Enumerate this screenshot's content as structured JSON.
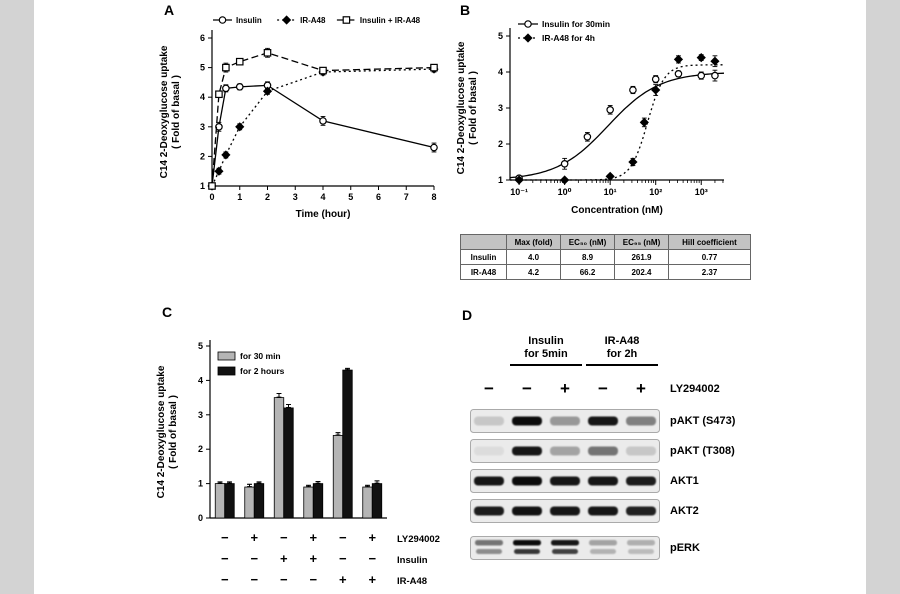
{
  "figure": {
    "panel_labels": [
      "A",
      "B",
      "C",
      "D"
    ]
  },
  "colors": {
    "gutter": "#d3d3d3",
    "bar_gray": "#b5b5b5",
    "bar_black": "#111111",
    "table_header_bg": "#c3c3c3"
  },
  "chart_data": [
    {
      "id": "A",
      "type": "line",
      "xlabel": "Time (hour)",
      "ylabel": "C14 2-Deoxyglucose uptake",
      "ylabel2": "( Fold of basal )",
      "xlim": [
        0,
        8
      ],
      "ylim": [
        1,
        6
      ],
      "xticks": [
        0,
        1,
        2,
        3,
        4,
        5,
        6,
        7,
        8
      ],
      "yticks": [
        1,
        2,
        3,
        4,
        5,
        6
      ],
      "legend_position": "top",
      "x": [
        0,
        0.25,
        0.5,
        1,
        2,
        4,
        8
      ],
      "series": [
        {
          "name": "Insulin",
          "marker": "circle-open",
          "line": "solid",
          "values": [
            1.0,
            3.0,
            4.3,
            4.35,
            4.4,
            3.2,
            2.3
          ],
          "errors": [
            0.05,
            0.15,
            0.12,
            0.1,
            0.12,
            0.15,
            0.15
          ]
        },
        {
          "name": "IR-A48",
          "marker": "diamond-filled",
          "line": "dotted",
          "values": [
            1.0,
            1.5,
            2.05,
            3.0,
            4.2,
            4.85,
            4.95
          ],
          "errors": [
            0.05,
            0.1,
            0.1,
            0.1,
            0.1,
            0.1,
            0.1
          ]
        },
        {
          "name": "Insulin + IR-A48",
          "marker": "square-open",
          "line": "dashed",
          "values": [
            1.0,
            4.1,
            5.0,
            5.2,
            5.5,
            4.9,
            5.0
          ],
          "errors": [
            0.05,
            0.1,
            0.15,
            0.1,
            0.15,
            0.1,
            0.1
          ]
        }
      ]
    },
    {
      "id": "B",
      "type": "line-logx",
      "xlabel": "Concentration (nM)",
      "ylabel": "C14 2-Deoxyglucose uptake",
      "ylabel2": "( Fold of basal )",
      "ylim": [
        1,
        5
      ],
      "yticks": [
        1,
        2,
        3,
        4,
        5
      ],
      "xticks": [
        {
          "log": -1,
          "label": "10⁻¹"
        },
        {
          "log": 0,
          "label": "10⁰"
        },
        {
          "log": 1,
          "label": "10¹"
        },
        {
          "log": 2,
          "label": "10²"
        },
        {
          "log": 3,
          "label": "10³"
        }
      ],
      "series": [
        {
          "name": "Insulin for 30min",
          "marker": "circle-open",
          "line": "solid",
          "max": 4.0,
          "ec50": 8.9,
          "hill": 0.77,
          "x": [
            0.1,
            1,
            3.16,
            10,
            31.6,
            100,
            316,
            1000,
            2000
          ],
          "values": [
            1.05,
            1.45,
            2.2,
            2.95,
            3.5,
            3.8,
            3.95,
            3.9,
            3.9
          ],
          "errors": [
            0.06,
            0.15,
            0.12,
            0.12,
            0.1,
            0.1,
            0.08,
            0.1,
            0.15
          ]
        },
        {
          "name": "IR-A48 for 4h",
          "marker": "diamond-filled",
          "line": "dotted",
          "max": 4.2,
          "ec50": 66.2,
          "hill": 2.37,
          "x": [
            0.1,
            1,
            10,
            31.6,
            56.2,
            100,
            316,
            1000,
            2000
          ],
          "values": [
            1.0,
            1.0,
            1.1,
            1.5,
            2.6,
            3.5,
            4.35,
            4.4,
            4.3
          ],
          "errors": [
            0.04,
            0.04,
            0.05,
            0.1,
            0.12,
            0.15,
            0.1,
            0.08,
            0.15
          ]
        }
      ]
    },
    {
      "id": "C",
      "type": "bar",
      "ylabel": "C14 2-Deoxyglucose uptake",
      "ylabel2": "( Fold of basal )",
      "ylim": [
        0,
        5
      ],
      "yticks": [
        0,
        1,
        2,
        3,
        4,
        5
      ],
      "legend": [
        {
          "label": "for 30 min",
          "color": "#b5b5b5"
        },
        {
          "label": "for 2 hours",
          "color": "#111111"
        }
      ],
      "groups": [
        {
          "values": [
            1.0,
            1.0
          ],
          "errors": [
            0.05,
            0.05
          ]
        },
        {
          "values": [
            0.9,
            1.0
          ],
          "errors": [
            0.08,
            0.05
          ]
        },
        {
          "values": [
            3.5,
            3.2
          ],
          "errors": [
            0.12,
            0.1
          ]
        },
        {
          "values": [
            0.9,
            1.0
          ],
          "errors": [
            0.05,
            0.06
          ]
        },
        {
          "values": [
            2.4,
            4.3
          ],
          "errors": [
            0.08,
            0.05
          ]
        },
        {
          "values": [
            0.9,
            1.0
          ],
          "errors": [
            0.05,
            0.08
          ]
        }
      ],
      "condition_rows": [
        {
          "label": "LY294002",
          "signs": [
            "−",
            "+",
            "−",
            "+",
            "−",
            "+"
          ]
        },
        {
          "label": "Insulin",
          "signs": [
            "−",
            "−",
            "+",
            "+",
            "−",
            "−"
          ]
        },
        {
          "label": "IR-A48",
          "signs": [
            "−",
            "−",
            "−",
            "−",
            "+",
            "+"
          ]
        }
      ]
    }
  ],
  "table_b": {
    "headers": [
      "",
      "Max (fold)",
      "EC₅₀ (nM)",
      "EC₉₅ (nM)",
      "Hill coefficient"
    ],
    "rows": [
      {
        "name": "Insulin",
        "values": [
          "4.0",
          "8.9",
          "261.9",
          "0.77"
        ]
      },
      {
        "name": "IR-A48",
        "values": [
          "4.2",
          "66.2",
          "202.4",
          "2.37"
        ]
      }
    ]
  },
  "panel_d": {
    "group_labels": [
      {
        "line1": "Insulin",
        "line2": "for 5min"
      },
      {
        "line1": "IR-A48",
        "line2": "for 2h"
      }
    ],
    "ly_row": {
      "label": "LY294002",
      "signs": [
        "−",
        "−",
        "+",
        "−",
        "+"
      ]
    },
    "blots": [
      {
        "label": "pAKT (S473)",
        "bands": [
          0.15,
          0.95,
          0.35,
          0.9,
          0.45
        ]
      },
      {
        "label": "pAKT (T308)",
        "bands": [
          0.06,
          0.9,
          0.3,
          0.5,
          0.15
        ]
      },
      {
        "label": "AKT1",
        "bands": [
          0.9,
          0.95,
          0.9,
          0.9,
          0.88
        ]
      },
      {
        "label": "AKT2",
        "bands": [
          0.88,
          0.92,
          0.9,
          0.9,
          0.86
        ]
      },
      {
        "label": "pERK",
        "bands": [
          0.5,
          0.95,
          0.9,
          0.3,
          0.25
        ],
        "doublet": true,
        "gap_before": true
      }
    ]
  }
}
